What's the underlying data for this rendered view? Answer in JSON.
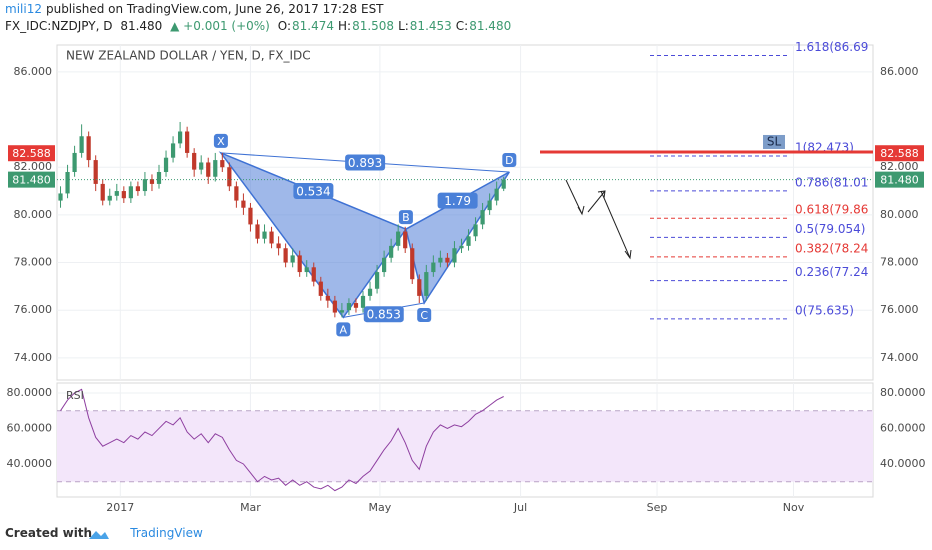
{
  "header": {
    "author": "mili12",
    "published": "published on TradingView.com, June 26, 2017 17:28 EST",
    "symbol": "FX_IDC:NZDJPY, D",
    "price": "81.480",
    "change": "▲ +0.001 (+0%)",
    "ohlc": [
      {
        "k": "O:",
        "v": "81.474"
      },
      {
        "k": "H:",
        "v": "81.508"
      },
      {
        "k": "L:",
        "v": "81.453"
      },
      {
        "k": "C:",
        "v": "81.480"
      }
    ]
  },
  "footer": {
    "created": "Created with",
    "brand": "TradingView"
  },
  "chart_data": {
    "type": "candlestick",
    "title": "NEW ZEALAND DOLLAR / YEN, D, FX_IDC",
    "categories": [
      null,
      null,
      null,
      null,
      null,
      null,
      null,
      null,
      null,
      null,
      null,
      null,
      null,
      null,
      null,
      null,
      null,
      null,
      null,
      null,
      null,
      null,
      null,
      null,
      null,
      null,
      null,
      null,
      null,
      null,
      null,
      null,
      null,
      null,
      null,
      null,
      null,
      null,
      null,
      null,
      null,
      null,
      null,
      null,
      null,
      null,
      null,
      null,
      null,
      null,
      null,
      null,
      null,
      null,
      null,
      null,
      null,
      null,
      null,
      null,
      null,
      null,
      null,
      null
    ],
    "open": [
      80.6,
      80.9,
      81.8,
      82.6,
      83.3,
      82.3,
      81.3,
      80.6,
      80.8,
      81.0,
      80.7,
      81.2,
      81.0,
      81.5,
      81.3,
      81.8,
      82.4,
      83.0,
      83.5,
      82.6,
      81.9,
      82.2,
      81.6,
      82.3,
      82.0,
      81.2,
      80.6,
      80.3,
      79.6,
      79.0,
      79.3,
      78.8,
      78.6,
      78.0,
      78.3,
      77.6,
      77.8,
      77.2,
      76.6,
      76.4,
      75.9,
      76.0,
      76.3,
      76.1,
      76.6,
      76.9,
      77.6,
      78.2,
      78.7,
      79.3,
      78.6,
      77.3,
      76.6,
      77.6,
      78.0,
      78.2,
      78.0,
      78.6,
      78.7,
      79.1,
      79.6,
      80.2,
      80.6,
      81.1
    ],
    "high": [
      81.2,
      82.1,
      82.9,
      83.8,
      83.5,
      82.5,
      81.5,
      81.1,
      81.3,
      81.2,
      81.4,
      81.4,
      81.8,
      81.7,
      82.1,
      82.7,
      83.3,
      83.9,
      83.7,
      82.8,
      82.5,
      82.4,
      82.6,
      82.6,
      82.2,
      81.4,
      80.9,
      80.5,
      79.8,
      79.6,
      79.5,
      79.1,
      78.8,
      78.6,
      78.5,
      78.1,
      78.0,
      77.4,
      76.9,
      76.6,
      76.3,
      76.5,
      76.5,
      76.8,
      77.2,
      77.9,
      78.5,
      79.0,
      79.6,
      79.5,
      78.8,
      77.5,
      77.9,
      78.3,
      78.5,
      78.4,
      78.9,
      79.0,
      79.4,
      79.9,
      80.5,
      80.9,
      81.4,
      81.6
    ],
    "low": [
      80.3,
      80.7,
      81.6,
      82.4,
      82.0,
      81.0,
      80.4,
      80.4,
      80.6,
      80.5,
      80.5,
      80.8,
      80.8,
      81.0,
      81.1,
      81.6,
      82.2,
      82.8,
      82.4,
      81.6,
      81.7,
      81.3,
      81.4,
      81.8,
      81.0,
      80.3,
      80.0,
      79.3,
      78.8,
      78.8,
      78.6,
      78.3,
      77.8,
      77.8,
      77.4,
      77.4,
      77.0,
      76.4,
      76.1,
      75.7,
      75.7,
      75.8,
      75.9,
      75.9,
      76.4,
      76.7,
      77.4,
      78.0,
      78.5,
      78.4,
      77.1,
      76.3,
      76.4,
      77.4,
      77.8,
      77.8,
      77.8,
      78.4,
      78.5,
      78.9,
      79.4,
      80.0,
      80.4,
      81.0
    ],
    "close": [
      80.9,
      81.8,
      82.6,
      83.3,
      82.3,
      81.3,
      80.6,
      80.8,
      81.0,
      80.7,
      81.2,
      81.0,
      81.5,
      81.3,
      81.8,
      82.4,
      83.0,
      83.5,
      82.6,
      81.9,
      82.2,
      81.6,
      82.3,
      82.0,
      81.2,
      80.6,
      80.3,
      79.6,
      79.0,
      79.3,
      78.8,
      78.6,
      78.0,
      78.3,
      77.6,
      77.8,
      77.2,
      76.6,
      76.4,
      75.9,
      76.0,
      76.3,
      76.1,
      76.6,
      76.9,
      77.6,
      78.2,
      78.7,
      79.3,
      78.6,
      77.3,
      76.6,
      77.6,
      78.0,
      78.2,
      78.0,
      78.6,
      78.7,
      79.1,
      79.6,
      80.2,
      80.6,
      81.1,
      81.48
    ],
    "up_color": "#3d9970",
    "down_color": "#c0392b",
    "xlim": [
      -0.5,
      115.5
    ],
    "xticks": [
      {
        "value": 8.5,
        "label": "2017"
      },
      {
        "value": 27,
        "label": "Mar"
      },
      {
        "value": 45.4,
        "label": "May"
      },
      {
        "value": 65.4,
        "label": "Jul"
      },
      {
        "value": 84.8,
        "label": "Sep"
      },
      {
        "value": 104.2,
        "label": "Nov"
      }
    ],
    "ylim": [
      73.07,
      87.13
    ],
    "yticks": [
      {
        "value": 74,
        "label": "74.000"
      },
      {
        "value": 76,
        "label": "76.000"
      },
      {
        "value": 78,
        "label": "78.000"
      },
      {
        "value": 80,
        "label": "80.000"
      },
      {
        "value": 82,
        "label": "82.000"
      },
      {
        "value": 86,
        "label": "86.000"
      }
    ],
    "grid": true,
    "price_labels": [
      {
        "value": 82.588,
        "label": "82.588",
        "color": "#e53935"
      },
      {
        "value": 81.48,
        "label": "81.480",
        "color": "#3d9970"
      }
    ],
    "pattern": {
      "color": "#3f72d4",
      "points": [
        {
          "label": "X",
          "x": 22.8,
          "y": 82.6
        },
        {
          "label": "A",
          "x": 40.2,
          "y": 75.7
        },
        {
          "label": "B",
          "x": 49.1,
          "y": 79.4
        },
        {
          "label": "C",
          "x": 51.7,
          "y": 76.3
        },
        {
          "label": "D",
          "x": 63.8,
          "y": 81.8
        }
      ],
      "ratios": [
        "0.534",
        "0.853",
        "1.79",
        "0.893"
      ]
    },
    "fib_levels": [
      {
        "value": 86.69,
        "label": "1.618(86.69",
        "color": "#4b4bd8"
      },
      {
        "value": 82.473,
        "label": "1(82.473)",
        "color": "#4b4bd8"
      },
      {
        "value": 81.01,
        "label": "0.786(81.01",
        "color": "#4b4bd8"
      },
      {
        "value": 79.86,
        "label": "0.618(79.86",
        "color": "#e53935"
      },
      {
        "value": 79.054,
        "label": "0.5(79.054)",
        "color": "#4b4bd8"
      },
      {
        "value": 78.24,
        "label": "0.382(78.24",
        "color": "#e53935"
      },
      {
        "value": 77.24,
        "label": "0.236(77.24",
        "color": "#4b4bd8"
      },
      {
        "value": 75.635,
        "label": "0(75.635)",
        "color": "#4b4bd8"
      }
    ],
    "stop_loss": {
      "label": "SL",
      "value": 82.64,
      "color": "#e53935"
    },
    "rsi": {
      "type": "line",
      "title": "RSI",
      "color": "#8e3fa0",
      "values": [
        70,
        76,
        80,
        82,
        66,
        55,
        50,
        52,
        54,
        52,
        56,
        54,
        58,
        56,
        60,
        64,
        62,
        66,
        58,
        54,
        57,
        52,
        57,
        55,
        48,
        42,
        40,
        35,
        30,
        33,
        31,
        32,
        28,
        31,
        28,
        30,
        27,
        26,
        28,
        25,
        27,
        31,
        29,
        33,
        36,
        42,
        48,
        53,
        60,
        52,
        42,
        37,
        50,
        58,
        62,
        60,
        62,
        61,
        64,
        68,
        70,
        73,
        76,
        78
      ],
      "ylim": [
        21.4,
        85.6
      ],
      "band": [
        30,
        70
      ],
      "yticks": [
        {
          "value": 40,
          "label": "40.0000"
        },
        {
          "value": 60,
          "label": "60.0000"
        },
        {
          "value": 80,
          "label": "80.0000"
        }
      ]
    }
  }
}
